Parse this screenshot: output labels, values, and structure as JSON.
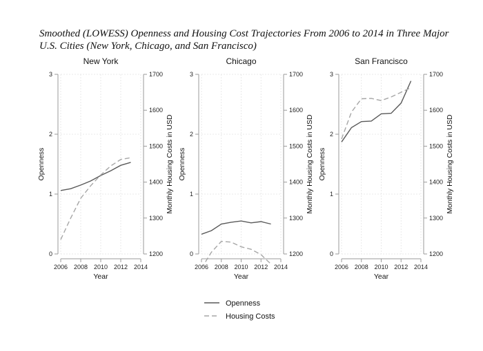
{
  "title": "Smoothed (LOWESS) Openness and Housing Cost Trajectories From 2006 to 2014 in Three Major U.S. Cities (New York, Chicago, and San Francisco)",
  "chart_data": [
    {
      "type": "line",
      "title": "New York",
      "xlabel": "Year",
      "ylabel": "Openness",
      "y2label": "Monthly Housing Costs in USD",
      "xlim": [
        2006,
        2014
      ],
      "ylim": [
        0,
        3
      ],
      "y2lim": [
        1200,
        1700
      ],
      "xticks": [
        "2006",
        "2008",
        "2010",
        "2012",
        "2014"
      ],
      "yticks": [
        "0",
        "1",
        "2",
        "3"
      ],
      "y2ticks": [
        "1200",
        "1300",
        "1400",
        "1500",
        "1600",
        "1700"
      ],
      "grid": true,
      "x": [
        2006,
        2007,
        2008,
        2009,
        2010,
        2011,
        2012,
        2013
      ],
      "series": [
        {
          "name": "Openness",
          "axis": "left",
          "style": "solid",
          "values": [
            1.06,
            1.09,
            1.15,
            1.22,
            1.31,
            1.39,
            1.48,
            1.53
          ]
        },
        {
          "name": "Housing Costs",
          "axis": "right",
          "style": "dashed",
          "values": [
            1240,
            1300,
            1355,
            1390,
            1420,
            1445,
            1463,
            1468
          ]
        }
      ]
    },
    {
      "type": "line",
      "title": "Chicago",
      "xlabel": "Year",
      "ylabel": "Openness",
      "y2label": "Monthly Housing Costs in USD",
      "xlim": [
        2006,
        2014
      ],
      "ylim": [
        0,
        3
      ],
      "y2lim": [
        1200,
        1700
      ],
      "xticks": [
        "2006",
        "2008",
        "2010",
        "2012",
        "2014"
      ],
      "yticks": [
        "0",
        "1",
        "2",
        "3"
      ],
      "y2ticks": [
        "1200",
        "1300",
        "1400",
        "1500",
        "1600",
        "1700"
      ],
      "grid": true,
      "x": [
        2006,
        2007,
        2008,
        2009,
        2010,
        2011,
        2012,
        2013
      ],
      "series": [
        {
          "name": "Openness",
          "axis": "left",
          "style": "solid",
          "values": [
            0.33,
            0.39,
            0.5,
            0.53,
            0.55,
            0.52,
            0.54,
            0.5
          ]
        },
        {
          "name": "Housing Costs",
          "axis": "right",
          "style": "dashed",
          "values": [
            1160,
            1205,
            1235,
            1233,
            1220,
            1213,
            1198,
            1172
          ]
        }
      ]
    },
    {
      "type": "line",
      "title": "San Francisco",
      "xlabel": "Year",
      "ylabel": "Openness",
      "y2label": "Monthly Housing Costs in USD",
      "xlim": [
        2006,
        2014
      ],
      "ylim": [
        0,
        3
      ],
      "y2lim": [
        1200,
        1700
      ],
      "xticks": [
        "2006",
        "2008",
        "2010",
        "2012",
        "2014"
      ],
      "yticks": [
        "0",
        "1",
        "2",
        "3"
      ],
      "y2ticks": [
        "1200",
        "1300",
        "1400",
        "1500",
        "1600",
        "1700"
      ],
      "grid": true,
      "x": [
        2006,
        2007,
        2008,
        2009,
        2010,
        2011,
        2012,
        2013
      ],
      "series": [
        {
          "name": "Openness",
          "axis": "left",
          "style": "solid",
          "values": [
            1.87,
            2.11,
            2.21,
            2.22,
            2.34,
            2.35,
            2.52,
            2.89
          ]
        },
        {
          "name": "Housing Costs",
          "axis": "right",
          "style": "dashed",
          "values": [
            1520,
            1595,
            1632,
            1633,
            1627,
            1637,
            1650,
            1663
          ]
        }
      ]
    }
  ],
  "legend": [
    {
      "label": "Openness",
      "style": "solid"
    },
    {
      "label": "Housing Costs",
      "style": "dashed"
    }
  ],
  "colors": {
    "openness": "#595959",
    "housing": "#a6a6a6",
    "axis": "#9a9a9a",
    "grid": "#e3e3e3"
  }
}
